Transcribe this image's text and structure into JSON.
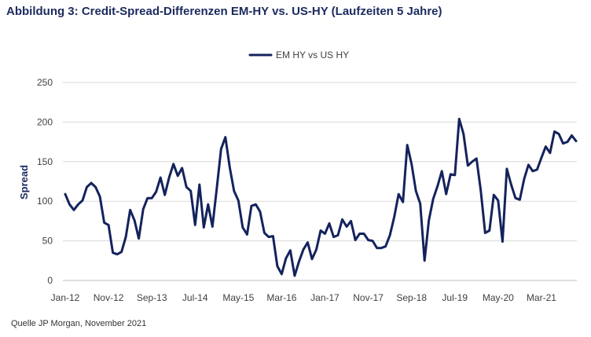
{
  "title": "Abbildung 3: Credit-Spread-Differenzen EM-HY vs. US-HY (Laufzeiten 5 Jahre)",
  "source": "Quelle   JP Morgan, November 2021",
  "colors": {
    "series": "#14235c",
    "grid": "#d9d9d9",
    "axis": "#bfbfbf"
  },
  "chart_data": {
    "type": "line",
    "title": "Abbildung 3: Credit-Spread-Differenzen EM-HY vs. US-HY (Laufzeiten 5 Jahre)",
    "xlabel": "",
    "ylabel": "Spread",
    "ylim": [
      0,
      250
    ],
    "yticks": [
      0,
      50,
      100,
      150,
      200,
      250
    ],
    "x_tick_labels": [
      "Jan-12",
      "Nov-12",
      "Sep-13",
      "Jul-14",
      "May-15",
      "Mar-16",
      "Jan-17",
      "Nov-17",
      "Sep-18",
      "Jul-19",
      "May-20",
      "Mar-21"
    ],
    "x_tick_months": [
      0,
      10,
      20,
      30,
      40,
      50,
      60,
      70,
      80,
      90,
      100,
      110
    ],
    "x_range_months": [
      0,
      118
    ],
    "grid": true,
    "legend_position": "top-center",
    "series": [
      {
        "name": "EM HY vs US HY",
        "points": [
          [
            0,
            109
          ],
          [
            1,
            96
          ],
          [
            2,
            89
          ],
          [
            3,
            96
          ],
          [
            4,
            101
          ],
          [
            5,
            118
          ],
          [
            6,
            123
          ],
          [
            7,
            118
          ],
          [
            8,
            106
          ],
          [
            9,
            73
          ],
          [
            10,
            70
          ],
          [
            11,
            35
          ],
          [
            12,
            33
          ],
          [
            13,
            36
          ],
          [
            14,
            55
          ],
          [
            15,
            89
          ],
          [
            16,
            76
          ],
          [
            17,
            53
          ],
          [
            18,
            90
          ],
          [
            19,
            104
          ],
          [
            20,
            104
          ],
          [
            21,
            112
          ],
          [
            22,
            130
          ],
          [
            23,
            108
          ],
          [
            24,
            130
          ],
          [
            25,
            147
          ],
          [
            26,
            132
          ],
          [
            27,
            142
          ],
          [
            28,
            118
          ],
          [
            29,
            113
          ],
          [
            30,
            70
          ],
          [
            31,
            121
          ],
          [
            32,
            67
          ],
          [
            33,
            96
          ],
          [
            34,
            68
          ],
          [
            35,
            116
          ],
          [
            36,
            166
          ],
          [
            37,
            181
          ],
          [
            38,
            143
          ],
          [
            39,
            113
          ],
          [
            40,
            101
          ],
          [
            41,
            67
          ],
          [
            42,
            58
          ],
          [
            43,
            94
          ],
          [
            44,
            96
          ],
          [
            45,
            87
          ],
          [
            46,
            60
          ],
          [
            47,
            55
          ],
          [
            48,
            56
          ],
          [
            49,
            18
          ],
          [
            50,
            8
          ],
          [
            51,
            28
          ],
          [
            52,
            38
          ],
          [
            53,
            6
          ],
          [
            54,
            24
          ],
          [
            55,
            39
          ],
          [
            56,
            48
          ],
          [
            57,
            27
          ],
          [
            58,
            39
          ],
          [
            59,
            63
          ],
          [
            60,
            59
          ],
          [
            61,
            72
          ],
          [
            62,
            55
          ],
          [
            63,
            57
          ],
          [
            64,
            77
          ],
          [
            65,
            68
          ],
          [
            66,
            75
          ],
          [
            67,
            51
          ],
          [
            68,
            59
          ],
          [
            69,
            59
          ],
          [
            70,
            51
          ],
          [
            71,
            50
          ],
          [
            72,
            41
          ],
          [
            73,
            41
          ],
          [
            74,
            43
          ],
          [
            75,
            57
          ],
          [
            76,
            80
          ],
          [
            77,
            109
          ],
          [
            78,
            99
          ],
          [
            79,
            171
          ],
          [
            80,
            147
          ],
          [
            81,
            113
          ],
          [
            82,
            97
          ],
          [
            83,
            25
          ],
          [
            84,
            76
          ],
          [
            85,
            103
          ],
          [
            86,
            119
          ],
          [
            87,
            138
          ],
          [
            88,
            109
          ],
          [
            89,
            134
          ],
          [
            90,
            133
          ],
          [
            91,
            204
          ],
          [
            92,
            185
          ],
          [
            93,
            145
          ],
          [
            94,
            150
          ],
          [
            95,
            154
          ],
          [
            96,
            113
          ],
          [
            97,
            60
          ],
          [
            98,
            63
          ],
          [
            99,
            108
          ],
          [
            100,
            101
          ],
          [
            101,
            49
          ],
          [
            102,
            141
          ],
          [
            103,
            121
          ],
          [
            104,
            104
          ],
          [
            105,
            102
          ],
          [
            106,
            128
          ],
          [
            107,
            146
          ],
          [
            108,
            138
          ],
          [
            109,
            140
          ],
          [
            110,
            155
          ],
          [
            111,
            169
          ],
          [
            112,
            161
          ],
          [
            113,
            188
          ],
          [
            114,
            185
          ],
          [
            115,
            173
          ],
          [
            116,
            175
          ],
          [
            117,
            183
          ],
          [
            118,
            176
          ]
        ]
      }
    ]
  }
}
